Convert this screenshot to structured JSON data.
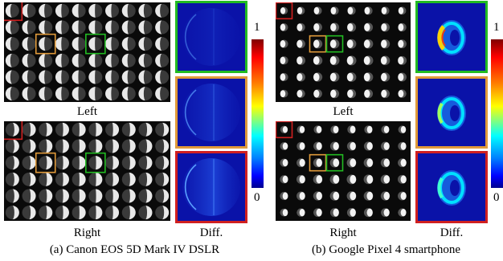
{
  "figure_a": {
    "caption": "(a) Canon EOS 5D Mark IV DSLR",
    "label_left": "Left",
    "label_right": "Right",
    "label_diff": "Diff."
  },
  "figure_b": {
    "caption": "(b) Google Pixel 4 smartphone",
    "label_left": "Left",
    "label_right": "Right",
    "label_diff": "Diff."
  },
  "colorbar": {
    "max_label": "1",
    "min_label": "0"
  },
  "colors": {
    "highlight_red": "#d02020",
    "highlight_orange": "#e09a3a",
    "highlight_green": "#22bb22",
    "diff_background": "#0a12a8"
  }
}
